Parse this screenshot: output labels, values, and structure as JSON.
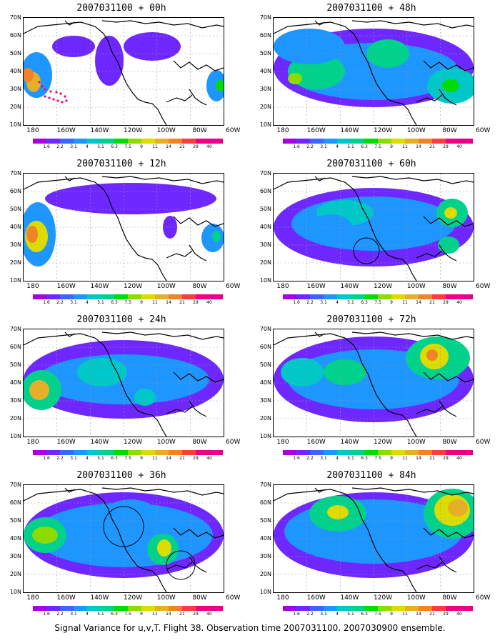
{
  "panels": [
    {
      "title": "2007031100 + 00h"
    },
    {
      "title": "2007031100 + 48h"
    },
    {
      "title": "2007031100 + 12h"
    },
    {
      "title": "2007031100 + 60h"
    },
    {
      "title": "2007031100 + 24h"
    },
    {
      "title": "2007031100 + 72h"
    },
    {
      "title": "2007031100 + 36h"
    },
    {
      "title": "2007031100 + 84h"
    }
  ],
  "lat_labels": [
    "70N",
    "60N",
    "50N",
    "40N",
    "30N",
    "20N",
    "10N"
  ],
  "lon_labels": [
    "180",
    "160W",
    "140W",
    "120W",
    "100W",
    "80W",
    "60W"
  ],
  "colorbar": {
    "labels": [
      "1.6",
      "2.2",
      "3.1",
      "4",
      "5.1",
      "6.3",
      "7.5",
      "9",
      "11",
      "14",
      "21",
      "29",
      "40"
    ],
    "colors": [
      "#a800e0",
      "#6e28ff",
      "#3c64ff",
      "#1e96ff",
      "#00c8c8",
      "#00d28c",
      "#00dc00",
      "#8cdc00",
      "#dcdc00",
      "#e6af28",
      "#f08228",
      "#fa3c3c",
      "#f00082",
      "#e6008c"
    ]
  },
  "caption": "Signal Variance for u,v,T. Flight 38. Observation time 2007031100. 2007030900 ensemble."
}
